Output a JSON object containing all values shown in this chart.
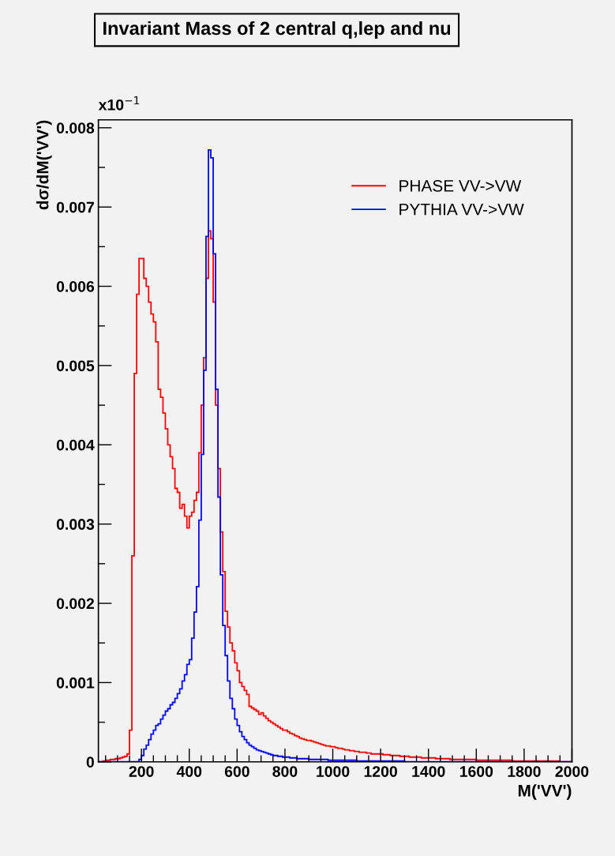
{
  "chart_data": {
    "type": "histogram",
    "title": "Invariant Mass of 2 central q,lep and nu",
    "xlabel": "M('VV')",
    "ylabel": "dσ/dM('VV')",
    "annotations": [
      "x10$^{−1}$"
    ],
    "bins": [
      20,
      30,
      40,
      50,
      60,
      70,
      80,
      90,
      100,
      110,
      120,
      130,
      140,
      150,
      160,
      170,
      180,
      190,
      200,
      210,
      220,
      230,
      240,
      250,
      260,
      270,
      280,
      290,
      300,
      310,
      320,
      330,
      340,
      350,
      360,
      370,
      380,
      390,
      400,
      410,
      420,
      430,
      440,
      450,
      460,
      470,
      480,
      490,
      500,
      510,
      520,
      530,
      540,
      550,
      560,
      570,
      580,
      590,
      600,
      610,
      620,
      630,
      640,
      650,
      660,
      670,
      680,
      690,
      700,
      710,
      720,
      730,
      740,
      750,
      760,
      770,
      780,
      790,
      800,
      810,
      820,
      830,
      840,
      850,
      860,
      870,
      880,
      890,
      900,
      910,
      920,
      930,
      940,
      950,
      960,
      970,
      980,
      990,
      1000,
      1010,
      1020,
      1030,
      1040,
      1050,
      1060,
      1070,
      1080,
      1090,
      1100,
      1110,
      1120,
      1130,
      1140,
      1150,
      1160,
      1170,
      1180,
      1190,
      1200,
      1210,
      1220,
      1230,
      1240,
      1250,
      1260,
      1270,
      1280,
      1290,
      1300,
      1310,
      1320,
      1330,
      1340,
      1350,
      1360,
      1370,
      1380,
      1390,
      1400,
      1410,
      1420,
      1430,
      1440,
      1450,
      1460,
      1470,
      1480,
      1490,
      1500,
      1510,
      1520,
      1530,
      1540,
      1550,
      1560,
      1570,
      1580,
      1590,
      1600,
      1610,
      1620,
      1630,
      1640,
      1650,
      1660,
      1670,
      1680,
      1690,
      1700,
      1710,
      1720,
      1730,
      1740,
      1750,
      1760,
      1770,
      1780,
      1790,
      1800,
      1810,
      1820,
      1830,
      1840,
      1850,
      1860,
      1870,
      1880,
      1890,
      1900,
      1910,
      1920,
      1930,
      1940,
      1950,
      1960,
      1970,
      1980,
      1990,
      2000
    ],
    "series": [
      {
        "name": "PHASE VV->VW",
        "color": "#ff0000",
        "values": [
          0,
          0,
          1e-05,
          2e-05,
          2e-05,
          3e-05,
          3e-05,
          4e-05,
          4e-05,
          5e-05,
          6e-05,
          7e-05,
          0.0001,
          0.0004,
          0.0026,
          0.0049,
          0.0059,
          0.00635,
          0.00635,
          0.0061,
          0.006,
          0.0058,
          0.00565,
          0.00555,
          0.0053,
          0.0047,
          0.0046,
          0.0044,
          0.0042,
          0.004,
          0.00385,
          0.0037,
          0.00345,
          0.0034,
          0.0032,
          0.00325,
          0.0031,
          0.00295,
          0.0031,
          0.00315,
          0.0033,
          0.0034,
          0.0039,
          0.0045,
          0.0051,
          0.0061,
          0.0067,
          0.0066,
          0.0058,
          0.0045,
          0.0037,
          0.0029,
          0.0024,
          0.0019,
          0.0017,
          0.0015,
          0.0014,
          0.00125,
          0.00115,
          0.001,
          0.00095,
          0.0009,
          0.00085,
          0.0007,
          0.00068,
          0.00066,
          0.00064,
          0.0006,
          0.00062,
          0.00058,
          0.00055,
          0.00052,
          0.0005,
          0.00048,
          0.00046,
          0.00044,
          0.00042,
          0.0004,
          0.0004,
          0.00038,
          0.00036,
          0.00035,
          0.00033,
          0.00032,
          0.0003,
          0.00029,
          0.00028,
          0.00027,
          0.00027,
          0.00026,
          0.00025,
          0.00024,
          0.00023,
          0.00022,
          0.00021,
          0.0002,
          0.0002,
          0.00019,
          0.00019,
          0.00018,
          0.00017,
          0.00017,
          0.00016,
          0.00015,
          0.00015,
          0.00014,
          0.00014,
          0.00013,
          0.00013,
          0.00012,
          0.00012,
          0.00012,
          0.00011,
          0.00011,
          0.0001,
          0.0001,
          0.0001,
          0.0001,
          0.0001,
          9e-05,
          9e-05,
          9e-05,
          8e-05,
          8e-05,
          8e-05,
          8e-05,
          7e-05,
          7e-05,
          7e-05,
          7e-05,
          6e-05,
          6e-05,
          6e-05,
          6e-05,
          6e-05,
          5e-05,
          5e-05,
          5e-05,
          5e-05,
          5e-05,
          5e-05,
          4e-05,
          4e-05,
          4e-05,
          4e-05,
          4e-05,
          4e-05,
          3e-05,
          3e-05,
          3e-05,
          3e-05,
          3e-05,
          3e-05,
          3e-05,
          3e-05,
          3e-05,
          3e-05,
          3e-05,
          2e-05,
          2e-05,
          2e-05,
          2e-05,
          2e-05,
          2e-05,
          2e-05,
          2e-05,
          2e-05,
          2e-05,
          2e-05,
          2e-05,
          2e-05,
          2e-05,
          2e-05,
          1e-05,
          1e-05,
          1e-05,
          1e-05,
          1e-05,
          1e-05,
          1e-05,
          1e-05,
          1e-05,
          1e-05,
          1e-05,
          1e-05,
          1e-05,
          1e-05,
          1e-05,
          1e-05,
          1e-05,
          1e-05,
          1e-05,
          1e-05,
          0,
          0,
          0,
          0,
          0
        ]
      },
      {
        "name": "PYTHIA VV->VW",
        "color": "#0000ff",
        "values": [
          0,
          0,
          0,
          0,
          0,
          0,
          0,
          0,
          0,
          0,
          0,
          0,
          0,
          0,
          0,
          0,
          0,
          3e-05,
          8e-05,
          0.00016,
          0.00021,
          0.00028,
          0.00035,
          0.0004,
          0.00046,
          0.00048,
          0.00054,
          0.00059,
          0.00064,
          0.00067,
          0.00072,
          0.00075,
          0.0008,
          0.00086,
          0.00092,
          0.00102,
          0.0011,
          0.00123,
          0.00129,
          0.00156,
          0.00189,
          0.00221,
          0.00305,
          0.00388,
          0.00494,
          0.00663,
          0.00772,
          0.00762,
          0.00641,
          0.0047,
          0.00334,
          0.00236,
          0.00172,
          0.00134,
          0.00102,
          0.0008,
          0.00067,
          0.00054,
          0.00046,
          0.00038,
          0.00032,
          0.00028,
          0.00024,
          0.00021,
          0.00019,
          0.00017,
          0.00015,
          0.00014,
          0.00013,
          0.00012,
          0.00011,
          0.0001,
          9e-05,
          8e-05,
          8e-05,
          7e-05,
          7e-05,
          6e-05,
          6e-05,
          6e-05,
          5e-05,
          5e-05,
          5e-05,
          4e-05,
          4e-05,
          4e-05,
          4e-05,
          4e-05,
          3e-05,
          3e-05,
          3e-05,
          3e-05,
          3e-05,
          3e-05,
          3e-05,
          3e-05,
          2e-05,
          2e-05,
          2e-05,
          2e-05,
          2e-05,
          2e-05,
          2e-05,
          2e-05,
          2e-05,
          2e-05,
          2e-05,
          2e-05,
          1e-05,
          1e-05,
          1e-05,
          1e-05,
          1e-05,
          1e-05,
          1e-05,
          1e-05,
          1e-05,
          1e-05,
          1e-05,
          1e-05,
          1e-05,
          1e-05,
          1e-05,
          1e-05,
          1e-05,
          1e-05,
          1e-05,
          1e-05,
          0,
          0,
          0,
          0,
          0,
          0,
          0,
          0,
          0,
          0,
          0,
          0,
          0,
          0,
          0,
          0,
          0,
          0,
          0,
          0,
          0,
          0,
          0,
          0,
          0,
          0,
          0,
          0,
          0,
          0,
          0,
          0,
          0,
          0,
          0,
          0,
          0,
          0,
          0,
          0,
          0,
          0,
          0,
          0,
          0,
          0,
          0,
          0,
          0,
          0,
          0,
          0,
          0,
          0,
          0,
          0,
          0,
          0,
          0,
          0,
          0,
          0,
          0,
          0,
          0,
          0,
          0,
          0,
          0,
          0
        ]
      }
    ],
    "xlim": [
      20,
      2000
    ],
    "xticks": [
      200,
      400,
      600,
      800,
      1000,
      1200,
      1400,
      1600,
      1800,
      2000
    ],
    "ylim": [
      0,
      0.0081
    ],
    "yticks": [
      {
        "value": 0,
        "label": "0"
      },
      {
        "value": 0.001,
        "label": "0.001"
      },
      {
        "value": 0.002,
        "label": "0.002"
      },
      {
        "value": 0.003,
        "label": "0.003"
      },
      {
        "value": 0.004,
        "label": "0.004"
      },
      {
        "value": 0.005,
        "label": "0.005"
      },
      {
        "value": 0.006,
        "label": "0.006"
      },
      {
        "value": 0.007,
        "label": "0.007"
      },
      {
        "value": 0.008,
        "label": "0.008"
      }
    ],
    "legend": "top right",
    "grid": false
  }
}
